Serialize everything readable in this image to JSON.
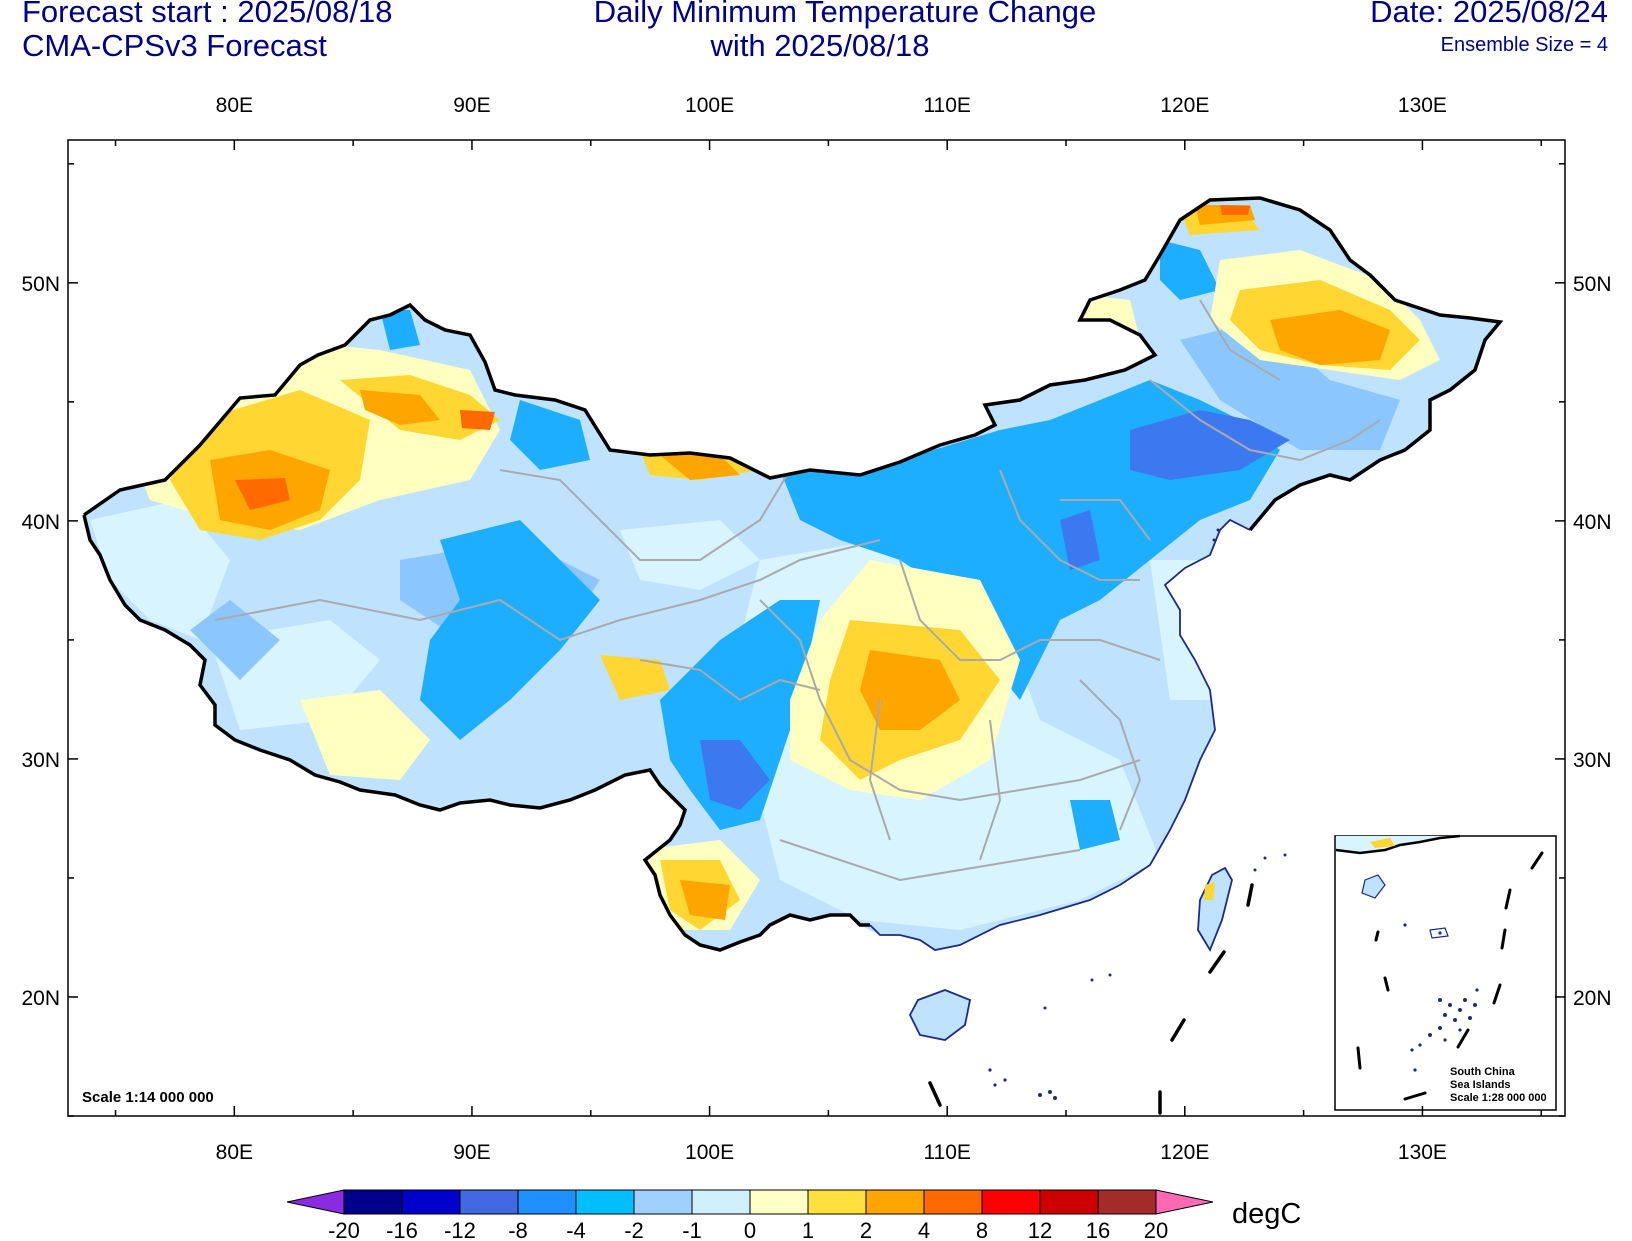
{
  "header": {
    "forecast_start": "Forecast start : 2025/08/18",
    "model": "CMA-CPSv3 Forecast",
    "title_line1": "Daily Minimum Temperature Change",
    "title_line2": "with 2025/08/18",
    "date": "Date: 2025/08/24",
    "ensemble": "Ensemble Size = 4"
  },
  "axes": {
    "lon_labels": [
      "80E",
      "90E",
      "100E",
      "110E",
      "120E",
      "130E"
    ],
    "lat_labels": [
      "50N",
      "40N",
      "30N",
      "20N"
    ],
    "lon_range": [
      73,
      136
    ],
    "lat_range": [
      15,
      56
    ]
  },
  "map": {
    "scale_note": "Scale 1:14 000 000",
    "inset_title_1": "South China",
    "inset_title_2": "Sea Islands",
    "inset_scale": "Scale 1:28 000 000"
  },
  "colorbar": {
    "unit": "degC",
    "labels": [
      "-20",
      "-16",
      "-12",
      "-8",
      "-4",
      "-2",
      "-1",
      "0",
      "1",
      "2",
      "4",
      "8",
      "12",
      "16",
      "20"
    ],
    "colors": [
      "#8a2be2",
      "#00008b",
      "#0000cd",
      "#4169e1",
      "#1e90ff",
      "#00bfff",
      "#a0d0ff",
      "#d0f0ff",
      "#ffffc8",
      "#ffe03c",
      "#ffa500",
      "#ff6a00",
      "#ff0000",
      "#cd0000",
      "#a52a2a",
      "#ff69b4"
    ]
  }
}
